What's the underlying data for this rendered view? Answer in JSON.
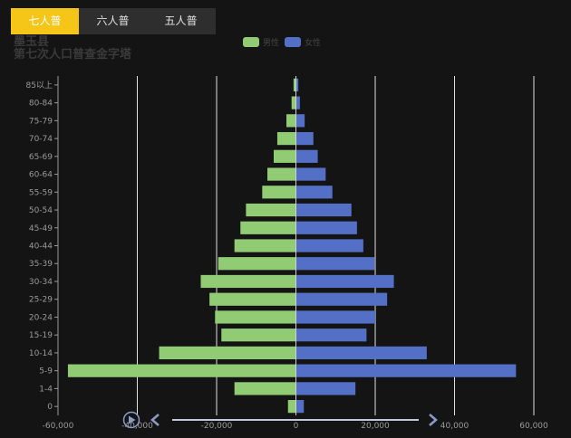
{
  "tabs": [
    {
      "label": "七人普",
      "active": true
    },
    {
      "label": "六人普",
      "active": false
    },
    {
      "label": "五人普",
      "active": false
    }
  ],
  "title": {
    "line1": "墨玉县",
    "line2": "第七次人口普查金字塔"
  },
  "legend": [
    {
      "name": "男性",
      "color": "#91cc75"
    },
    {
      "name": "女性",
      "color": "#5470c6"
    }
  ],
  "chart_data": {
    "type": "bar",
    "orientation": "horizontal",
    "title": "墨玉县 第七次人口普查金字塔",
    "categories": [
      "0",
      "1-4",
      "5-9",
      "10-14",
      "15-19",
      "20-24",
      "25-29",
      "30-34",
      "35-39",
      "40-44",
      "45-49",
      "50-54",
      "55-59",
      "60-64",
      "65-69",
      "70-74",
      "75-79",
      "80-84",
      "85以上"
    ],
    "series": [
      {
        "name": "男性",
        "color": "#91cc75",
        "values": [
          -2000,
          -15500,
          -57500,
          -34500,
          -18800,
          -20400,
          -21800,
          -24000,
          -19600,
          -15500,
          -14000,
          -12600,
          -8500,
          -7200,
          -5600,
          -4700,
          -2400,
          -1100,
          -600
        ]
      },
      {
        "name": "女性",
        "color": "#5470c6",
        "values": [
          2000,
          15000,
          55500,
          33000,
          17800,
          20000,
          23000,
          24700,
          19800,
          17000,
          15400,
          14000,
          9200,
          7500,
          5500,
          4400,
          2200,
          1000,
          600
        ]
      }
    ],
    "xlim": [
      -60000,
      60000
    ],
    "xticks": [
      "-60,000",
      "-40,000",
      "-20,000",
      "0",
      "20,000",
      "40,000",
      "60,000"
    ],
    "xtick_values": [
      -60000,
      -40000,
      -20000,
      0,
      20000,
      40000,
      60000
    ],
    "grid": true,
    "legend_position": "top-center"
  },
  "timeline": {
    "play_icon": "play-icon",
    "prev_icon": "chevron-left-icon",
    "next_icon": "chevron-right-icon"
  }
}
